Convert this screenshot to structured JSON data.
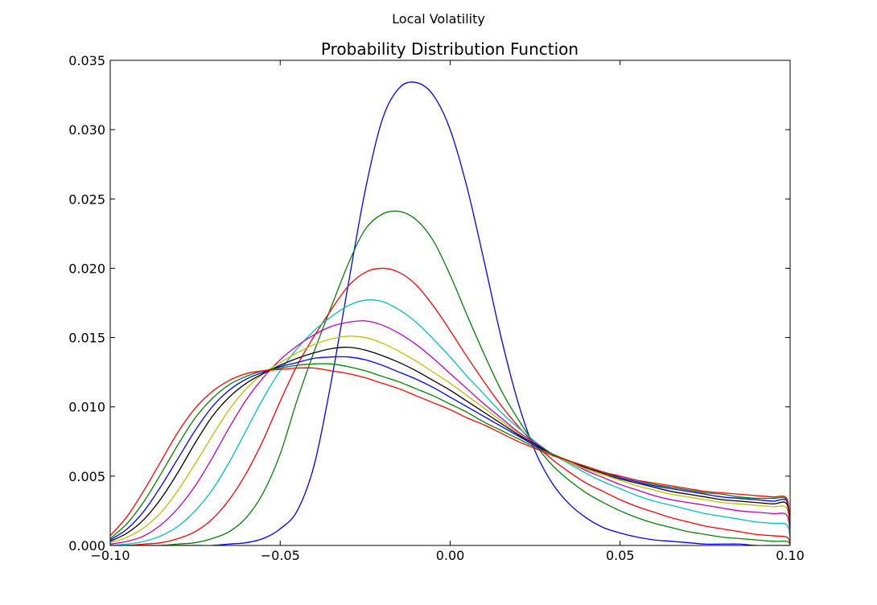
{
  "figure": {
    "suptitle": "Local Volatility"
  },
  "chart_data": {
    "type": "line",
    "title": "Probability Distribution Function",
    "xlabel": "",
    "ylabel": "",
    "xlim": [
      -0.1,
      0.1
    ],
    "ylim": [
      0.0,
      0.035
    ],
    "grid": false,
    "xticks": [
      -0.1,
      -0.05,
      0.0,
      0.05,
      0.1
    ],
    "xtick_labels": [
      "−0.10",
      "−0.05",
      "0.00",
      "0.05",
      "0.10"
    ],
    "yticks": [
      0.0,
      0.005,
      0.01,
      0.015,
      0.02,
      0.025,
      0.03,
      0.035
    ],
    "ytick_labels": [
      "0.000",
      "0.005",
      "0.010",
      "0.015",
      "0.020",
      "0.025",
      "0.030",
      "0.035"
    ],
    "x": [
      -0.1,
      -0.095,
      -0.09,
      -0.085,
      -0.08,
      -0.075,
      -0.07,
      -0.065,
      -0.06,
      -0.055,
      -0.05,
      -0.045,
      -0.04,
      -0.035,
      -0.03,
      -0.025,
      -0.02,
      -0.015,
      -0.01,
      -0.005,
      0.0,
      0.005,
      0.01,
      0.015,
      0.02,
      0.025,
      0.03,
      0.035,
      0.04,
      0.045,
      0.05,
      0.055,
      0.06,
      0.065,
      0.07,
      0.075,
      0.08,
      0.085,
      0.09,
      0.095,
      0.099,
      0.1
    ],
    "series": [
      {
        "color": "#0000ff",
        "values": [
          0.0,
          0.0,
          0.0,
          0.0,
          0.0,
          0.0,
          0.0,
          0.0001,
          0.0002,
          0.0005,
          0.0012,
          0.0025,
          0.0058,
          0.0118,
          0.0188,
          0.0256,
          0.0307,
          0.033,
          0.0334,
          0.0325,
          0.03,
          0.0258,
          0.0205,
          0.015,
          0.0103,
          0.0068,
          0.0045,
          0.003,
          0.002,
          0.0013,
          0.0009,
          0.0006,
          0.0004,
          0.0003,
          0.0002,
          0.0001,
          0.0001,
          0.0001,
          0.0,
          0.0,
          0.0,
          0.0
        ]
      },
      {
        "color": "#008000",
        "values": [
          0.0,
          0.0,
          0.0,
          0.0,
          0.0001,
          0.0002,
          0.0005,
          0.001,
          0.002,
          0.0038,
          0.0066,
          0.0105,
          0.014,
          0.0172,
          0.0203,
          0.0228,
          0.0239,
          0.0241,
          0.0235,
          0.022,
          0.0195,
          0.0166,
          0.0138,
          0.0112,
          0.0091,
          0.0073,
          0.0058,
          0.0047,
          0.0038,
          0.0031,
          0.0025,
          0.002,
          0.0016,
          0.0013,
          0.001,
          0.0008,
          0.0006,
          0.0005,
          0.0004,
          0.0003,
          0.0003,
          0.0001
        ]
      },
      {
        "color": "#ff0000",
        "values": [
          0.0,
          0.0,
          0.0001,
          0.0002,
          0.0005,
          0.001,
          0.0019,
          0.0033,
          0.0052,
          0.0076,
          0.0104,
          0.013,
          0.0151,
          0.017,
          0.0187,
          0.0197,
          0.02,
          0.0197,
          0.0188,
          0.0173,
          0.0155,
          0.0136,
          0.0118,
          0.0101,
          0.0086,
          0.0073,
          0.0062,
          0.0053,
          0.0045,
          0.0039,
          0.0033,
          0.0028,
          0.0024,
          0.002,
          0.0017,
          0.0014,
          0.0012,
          0.001,
          0.0008,
          0.0007,
          0.0006,
          0.0002
        ]
      },
      {
        "color": "#00bfbf",
        "values": [
          0.0,
          0.0001,
          0.0003,
          0.0007,
          0.0014,
          0.0025,
          0.004,
          0.006,
          0.0083,
          0.0106,
          0.0126,
          0.0142,
          0.0155,
          0.0165,
          0.0173,
          0.0177,
          0.0176,
          0.017,
          0.0161,
          0.0149,
          0.0136,
          0.0122,
          0.0109,
          0.0096,
          0.0085,
          0.0075,
          0.0066,
          0.0059,
          0.0052,
          0.0046,
          0.0041,
          0.0036,
          0.0032,
          0.0029,
          0.0026,
          0.0023,
          0.0021,
          0.0019,
          0.0017,
          0.0016,
          0.0015,
          0.0005
        ]
      },
      {
        "color": "#bf00bf",
        "values": [
          0.0001,
          0.0003,
          0.0007,
          0.0015,
          0.0027,
          0.0043,
          0.0063,
          0.0085,
          0.0105,
          0.0121,
          0.0134,
          0.0144,
          0.0152,
          0.0158,
          0.0161,
          0.0162,
          0.0159,
          0.0153,
          0.0145,
          0.0135,
          0.0124,
          0.0113,
          0.0102,
          0.0092,
          0.0082,
          0.0074,
          0.0066,
          0.006,
          0.0054,
          0.0049,
          0.0044,
          0.004,
          0.0036,
          0.0033,
          0.0031,
          0.0029,
          0.0027,
          0.0025,
          0.0024,
          0.0023,
          0.0022,
          0.0008
        ]
      },
      {
        "color": "#bfbf00",
        "values": [
          0.0002,
          0.0006,
          0.0013,
          0.0024,
          0.004,
          0.0059,
          0.0079,
          0.0098,
          0.0113,
          0.0124,
          0.0132,
          0.0139,
          0.0145,
          0.0149,
          0.0151,
          0.015,
          0.0146,
          0.014,
          0.0133,
          0.0125,
          0.0117,
          0.0108,
          0.0099,
          0.009,
          0.0081,
          0.0073,
          0.0066,
          0.006,
          0.0055,
          0.0051,
          0.0047,
          0.0043,
          0.004,
          0.0037,
          0.0035,
          0.0033,
          0.0031,
          0.003,
          0.0029,
          0.0028,
          0.0027,
          0.001
        ]
      },
      {
        "color": "#000000",
        "values": [
          0.0003,
          0.0009,
          0.0019,
          0.0034,
          0.0053,
          0.0074,
          0.0093,
          0.0107,
          0.0117,
          0.0124,
          0.013,
          0.0135,
          0.0139,
          0.0142,
          0.0143,
          0.0141,
          0.0137,
          0.0132,
          0.0126,
          0.0119,
          0.0112,
          0.0104,
          0.0096,
          0.0088,
          0.008,
          0.0073,
          0.0066,
          0.0061,
          0.0056,
          0.0052,
          0.0048,
          0.0045,
          0.0042,
          0.0039,
          0.0037,
          0.0035,
          0.0033,
          0.0032,
          0.0031,
          0.003,
          0.003,
          0.0012
        ]
      },
      {
        "color": "#0000ff",
        "values": [
          0.0004,
          0.0012,
          0.0025,
          0.0043,
          0.0063,
          0.0083,
          0.01,
          0.0112,
          0.012,
          0.0125,
          0.0129,
          0.0132,
          0.0135,
          0.0136,
          0.0136,
          0.0134,
          0.013,
          0.0125,
          0.012,
          0.0114,
          0.0107,
          0.01,
          0.0093,
          0.0086,
          0.0079,
          0.0072,
          0.0066,
          0.0061,
          0.0057,
          0.0053,
          0.0049,
          0.0046,
          0.0043,
          0.0041,
          0.0039,
          0.0037,
          0.0035,
          0.0034,
          0.0033,
          0.0032,
          0.0032,
          0.0014
        ]
      },
      {
        "color": "#008000",
        "values": [
          0.0005,
          0.0016,
          0.0032,
          0.0052,
          0.0073,
          0.0092,
          0.0106,
          0.0116,
          0.0122,
          0.0126,
          0.0128,
          0.013,
          0.0131,
          0.0131,
          0.0129,
          0.0126,
          0.0122,
          0.0118,
          0.0113,
          0.0108,
          0.0102,
          0.0096,
          0.0089,
          0.0083,
          0.0077,
          0.0071,
          0.0066,
          0.0061,
          0.0057,
          0.0053,
          0.005,
          0.0047,
          0.0044,
          0.0042,
          0.004,
          0.0038,
          0.0037,
          0.0035,
          0.0034,
          0.0034,
          0.0033,
          0.0015
        ]
      },
      {
        "color": "#ff0000",
        "values": [
          0.0007,
          0.0021,
          0.004,
          0.0061,
          0.0082,
          0.0099,
          0.0111,
          0.0119,
          0.0124,
          0.0126,
          0.0127,
          0.0128,
          0.0128,
          0.0126,
          0.0124,
          0.0121,
          0.0117,
          0.0113,
          0.0108,
          0.0103,
          0.0098,
          0.0092,
          0.0087,
          0.0081,
          0.0075,
          0.007,
          0.0065,
          0.0061,
          0.0057,
          0.0053,
          0.005,
          0.0047,
          0.0045,
          0.0043,
          0.0041,
          0.0039,
          0.0038,
          0.0037,
          0.0036,
          0.0035,
          0.0034,
          0.0016
        ]
      }
    ]
  }
}
